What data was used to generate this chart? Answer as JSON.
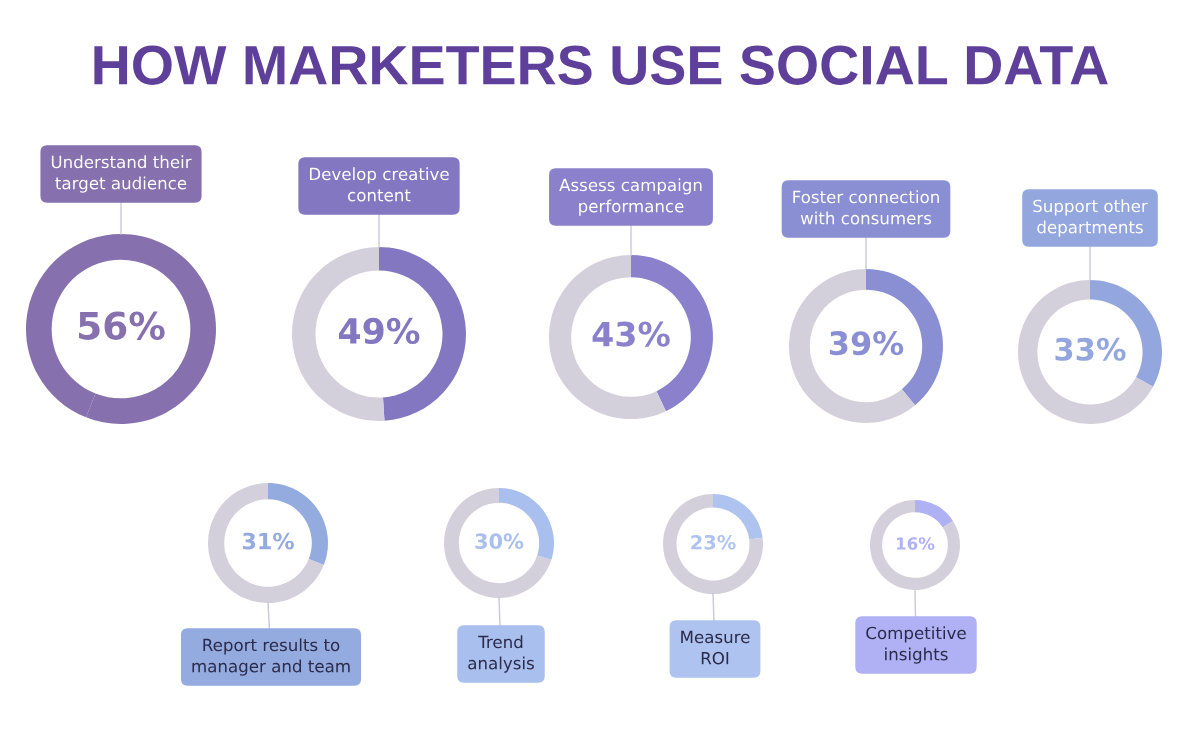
{
  "chart_data": [
    {
      "type": "other",
      "title": "HOW MARKETERS USE SOCIAL DATA"
    },
    {
      "type": "donut",
      "title": "Understand their\ntarget audience",
      "categories": [
        null,
        null
      ],
      "values": [
        56,
        44
      ],
      "colors": [
        "#8670ae",
        "#8670ae"
      ],
      "value_labels": [
        "56%",
        null
      ]
    },
    {
      "type": "donut",
      "title": "Develop creative\ncontent",
      "categories": [
        null,
        null
      ],
      "values": [
        49,
        51
      ],
      "colors": [
        "#8477c2",
        "#d3d0dc"
      ],
      "value_labels": [
        "49%",
        null
      ]
    },
    {
      "type": "donut",
      "title": "Assess campaign\nperformance",
      "categories": [
        null,
        null
      ],
      "values": [
        43,
        57
      ],
      "colors": [
        "#8a80cc",
        "#d3d0dc"
      ],
      "value_labels": [
        "43%",
        null
      ]
    },
    {
      "type": "donut",
      "title": "Foster connection\nwith consumers",
      "categories": [
        null,
        null
      ],
      "values": [
        39,
        61
      ],
      "colors": [
        "#8a8fd4",
        "#d3d0dc"
      ],
      "value_labels": [
        "39%",
        null
      ]
    },
    {
      "type": "donut",
      "title": "Support other\ndepartments",
      "categories": [
        null,
        null
      ],
      "values": [
        33,
        67
      ],
      "colors": [
        "#94a6de",
        "#d3d0dc"
      ],
      "value_labels": [
        "33%",
        null
      ]
    },
    {
      "type": "donut",
      "title": "Report results to\nmanager and team",
      "categories": [
        null,
        null
      ],
      "values": [
        31,
        69
      ],
      "colors": [
        "#94abe0",
        "#d3d0dc"
      ],
      "value_labels": [
        "31%",
        null
      ]
    },
    {
      "type": "donut",
      "title": "Trend\nanalysis",
      "categories": [
        null,
        null
      ],
      "values": [
        30,
        70
      ],
      "colors": [
        "#a9bfee",
        "#d3d0dc"
      ],
      "value_labels": [
        "30%",
        null
      ]
    },
    {
      "type": "donut",
      "title": "Measure\nROI",
      "categories": [
        null,
        null
      ],
      "values": [
        23,
        77
      ],
      "colors": [
        "#aec3ef",
        "#d3d0dc"
      ],
      "value_labels": [
        "23%",
        null
      ]
    },
    {
      "type": "donut",
      "title": "Competitive\ninsights",
      "categories": [
        null,
        null
      ],
      "values": [
        16,
        84
      ],
      "colors": [
        "#b0b0f4",
        "#d3d0dc"
      ],
      "value_labels": [
        "16%",
        null
      ]
    }
  ]
}
